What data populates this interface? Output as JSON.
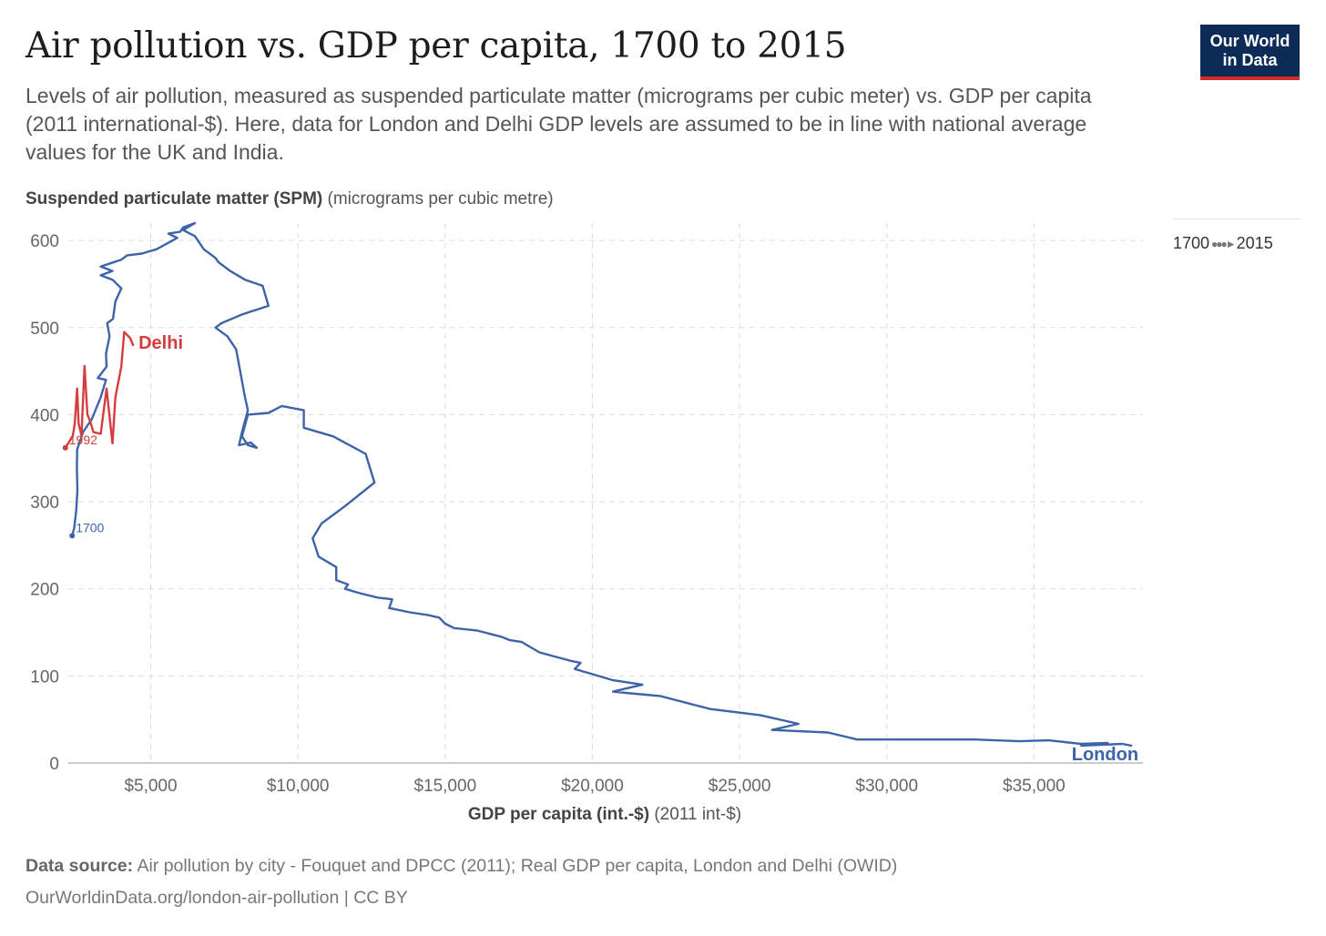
{
  "header": {
    "title": "Air pollution vs. GDP per capita, 1700 to 2015",
    "subtitle": "Levels of air pollution, measured as suspended particulate matter (micrograms per cubic meter) vs. GDP per capita (2011 international-$). Here, data for London and Delhi GDP levels are assumed to be in line with national average values for the UK and India.",
    "logo_line1": "Our World",
    "logo_line2": "in Data"
  },
  "axes": {
    "y_bold": "Suspended particulate matter (SPM)",
    "y_unit": " (micrograms per cubic metre)",
    "x_bold": "GDP per capita (int.-$)",
    "x_unit": " (2011 int-$)"
  },
  "timeline": {
    "start": "1700",
    "end": "2015"
  },
  "footer": {
    "source_label": "Data source:",
    "source_text": " Air pollution by city - Fouquet and DPCC (2011); Real GDP per capita, London and Delhi (OWID)",
    "license": "OurWorldinData.org/london-air-pollution | CC BY"
  },
  "colors": {
    "london": "#3d64a8",
    "delhi": "#d73c3c",
    "brand": "#0d2b57",
    "brand_accent": "#d42b2b"
  },
  "chart_data": {
    "type": "line",
    "xlim": [
      2200,
      38700
    ],
    "ylim": [
      0,
      620
    ],
    "yticks": [
      0,
      100,
      200,
      300,
      400,
      500,
      600
    ],
    "ytick_labels": [
      "0",
      "100",
      "200",
      "300",
      "400",
      "500",
      "600"
    ],
    "xticks": [
      5000,
      10000,
      15000,
      20000,
      25000,
      30000,
      35000
    ],
    "xtick_labels": [
      "$5,000",
      "$10,000",
      "$15,000",
      "$20,000",
      "$25,000",
      "$30,000",
      "$35,000"
    ],
    "grid": true,
    "series": [
      {
        "name": "London",
        "start_label": "1700",
        "points": [
          [
            2330,
            261
          ],
          [
            2400,
            270
          ],
          [
            2470,
            290
          ],
          [
            2510,
            313
          ],
          [
            2490,
            340
          ],
          [
            2500,
            360
          ],
          [
            2700,
            380
          ],
          [
            3000,
            395
          ],
          [
            3300,
            420
          ],
          [
            3480,
            440
          ],
          [
            3200,
            442
          ],
          [
            3500,
            455
          ],
          [
            3480,
            470
          ],
          [
            3600,
            490
          ],
          [
            3520,
            505
          ],
          [
            3720,
            510
          ],
          [
            3800,
            530
          ],
          [
            4000,
            545
          ],
          [
            3700,
            555
          ],
          [
            3300,
            560
          ],
          [
            3700,
            565
          ],
          [
            3300,
            570
          ],
          [
            4000,
            578
          ],
          [
            4200,
            583
          ],
          [
            4700,
            585
          ],
          [
            5200,
            590
          ],
          [
            5900,
            603
          ],
          [
            5600,
            608
          ],
          [
            6000,
            610
          ],
          [
            6100,
            615
          ],
          [
            6500,
            620
          ],
          [
            6100,
            612
          ],
          [
            6500,
            605
          ],
          [
            6800,
            590
          ],
          [
            7200,
            580
          ],
          [
            7300,
            575
          ],
          [
            7700,
            565
          ],
          [
            8200,
            555
          ],
          [
            8800,
            548
          ],
          [
            9000,
            525
          ],
          [
            8100,
            515
          ],
          [
            7400,
            505
          ],
          [
            7200,
            500
          ],
          [
            7600,
            490
          ],
          [
            7900,
            475
          ],
          [
            8200,
            420
          ],
          [
            8300,
            405
          ],
          [
            8100,
            380
          ],
          [
            8000,
            365
          ],
          [
            8400,
            368
          ],
          [
            8600,
            362
          ],
          [
            8300,
            365
          ],
          [
            8100,
            375
          ],
          [
            8300,
            400
          ],
          [
            9000,
            402
          ],
          [
            9450,
            410
          ],
          [
            10200,
            405
          ],
          [
            10200,
            385
          ],
          [
            11200,
            375
          ],
          [
            12300,
            355
          ],
          [
            12600,
            322
          ],
          [
            11600,
            295
          ],
          [
            10800,
            275
          ],
          [
            10500,
            258
          ],
          [
            10700,
            237
          ],
          [
            11300,
            225
          ],
          [
            11300,
            210
          ],
          [
            11700,
            205
          ],
          [
            11600,
            200
          ],
          [
            12100,
            195
          ],
          [
            12700,
            190
          ],
          [
            13200,
            188
          ],
          [
            13100,
            178
          ],
          [
            13800,
            173
          ],
          [
            14400,
            170
          ],
          [
            14800,
            167
          ],
          [
            15000,
            160
          ],
          [
            15300,
            155
          ],
          [
            16100,
            152
          ],
          [
            16900,
            145
          ],
          [
            17200,
            141
          ],
          [
            17600,
            139
          ],
          [
            18200,
            127
          ],
          [
            19300,
            117
          ],
          [
            19600,
            115
          ],
          [
            19400,
            108
          ],
          [
            19700,
            105
          ],
          [
            20000,
            102
          ],
          [
            20700,
            95
          ],
          [
            21700,
            90
          ],
          [
            20700,
            82
          ],
          [
            21300,
            80
          ],
          [
            22300,
            77
          ],
          [
            24000,
            62
          ],
          [
            25700,
            55
          ],
          [
            27000,
            45
          ],
          [
            26100,
            38
          ],
          [
            28000,
            35
          ],
          [
            29000,
            27
          ],
          [
            33000,
            27
          ],
          [
            34500,
            25
          ],
          [
            35500,
            26
          ],
          [
            36600,
            22
          ],
          [
            37500,
            23
          ],
          [
            36600,
            20
          ],
          [
            38000,
            22
          ],
          [
            38300,
            20
          ]
        ],
        "end_label": "London"
      },
      {
        "name": "Delhi",
        "start_label": "1992",
        "points": [
          [
            2100,
            362
          ],
          [
            2250,
            370
          ],
          [
            2350,
            375
          ],
          [
            2420,
            390
          ],
          [
            2500,
            430
          ],
          [
            2550,
            390
          ],
          [
            2650,
            376
          ],
          [
            2750,
            456
          ],
          [
            2850,
            400
          ],
          [
            2950,
            392
          ],
          [
            3050,
            380
          ],
          [
            3300,
            378
          ],
          [
            3500,
            430
          ],
          [
            3700,
            367
          ],
          [
            3800,
            420
          ],
          [
            4000,
            455
          ],
          [
            4100,
            495
          ],
          [
            4300,
            488
          ],
          [
            4400,
            480
          ]
        ],
        "end_label": "Delhi"
      }
    ]
  }
}
